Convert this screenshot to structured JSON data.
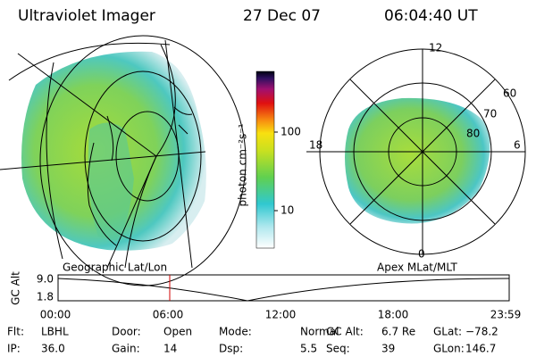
{
  "header": {
    "instrument": "Ultraviolet Imager",
    "date": "27 Dec 07",
    "time": "06:04:40 UT"
  },
  "colorbar": {
    "label": "photon cm⁻²s⁻¹",
    "ticks": [
      "100",
      "10"
    ]
  },
  "polar_plot": {
    "mlt_labels": [
      "12",
      "18",
      "6",
      "0"
    ],
    "lat_labels": [
      "60",
      "70",
      "80"
    ]
  },
  "panel_labels": {
    "left": "Geographic Lat/Lon",
    "right": "Apex MLat/MLT"
  },
  "altitude_strip": {
    "ylabel": "GC Alt",
    "yticks": [
      "9.0",
      "1.8"
    ],
    "xticks": [
      "00:00",
      "06:00",
      "12:00",
      "18:00",
      "23:59"
    ]
  },
  "info": {
    "rows": [
      [
        {
          "label": "Flt:",
          "value": "LBHL"
        },
        {
          "label": "Door:",
          "value": "Open"
        },
        {
          "label": "Mode:",
          "value": "Normal"
        },
        {
          "label": "GC Alt:",
          "value": "6.7 Re"
        },
        {
          "label": "GLat:",
          "value": "−78.2"
        }
      ],
      [
        {
          "label": "IP:",
          "value": "36.0"
        },
        {
          "label": "Gain:",
          "value": "14"
        },
        {
          "label": "Dsp:",
          "value": "5.5"
        },
        {
          "label": "Seq:",
          "value": "39"
        },
        {
          "label": "GLon:",
          "value": "146.7"
        }
      ]
    ]
  }
}
